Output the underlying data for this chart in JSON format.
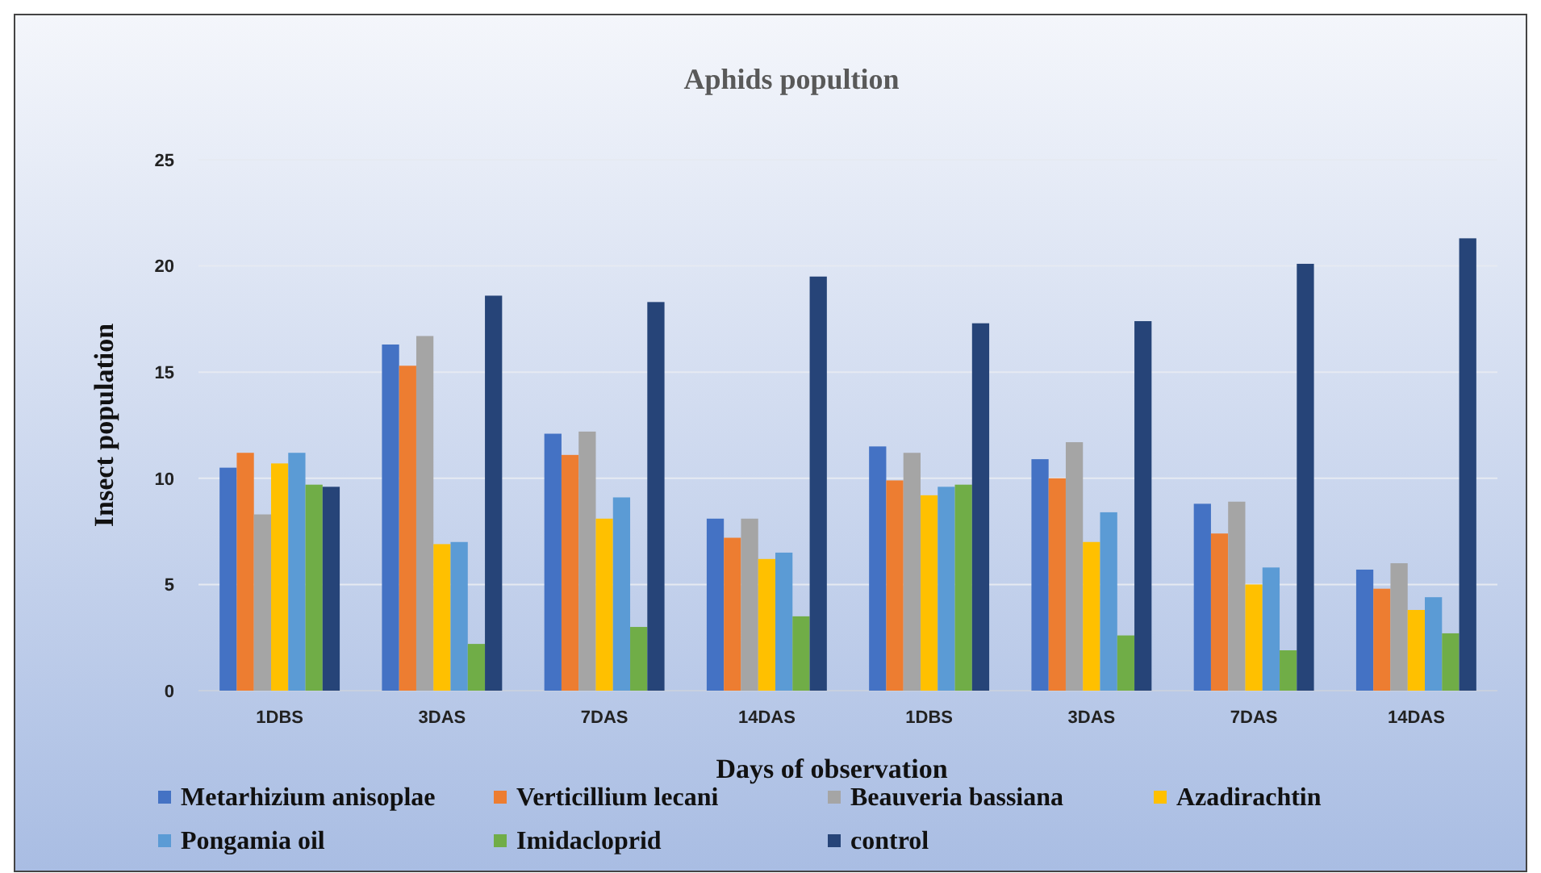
{
  "chart_data": {
    "type": "bar",
    "title": "Aphids popultion",
    "xlabel": "Days of observation",
    "ylabel": "Insect population",
    "categories": [
      "1DBS",
      "3DAS",
      "7DAS",
      "14DAS",
      "1DBS",
      "3DAS",
      "7DAS",
      "14DAS"
    ],
    "series": [
      {
        "name": "Metarhizium anisoplae",
        "color": "#4472c4",
        "values": [
          10.5,
          16.3,
          12.1,
          8.1,
          11.5,
          10.9,
          8.8,
          5.7
        ]
      },
      {
        "name": "Verticillium lecani",
        "color": "#ed7d31",
        "values": [
          11.2,
          15.3,
          11.1,
          7.2,
          9.9,
          10.0,
          7.4,
          4.8
        ]
      },
      {
        "name": "Beauveria bassiana",
        "color": "#a5a5a5",
        "values": [
          8.3,
          16.7,
          12.2,
          8.1,
          11.2,
          11.7,
          8.9,
          6.0
        ]
      },
      {
        "name": "Azadirachtin",
        "color": "#ffc000",
        "values": [
          10.7,
          6.9,
          8.1,
          6.2,
          9.2,
          7.0,
          5.0,
          3.8
        ]
      },
      {
        "name": "Pongamia oil",
        "color": "#5b9bd5",
        "values": [
          11.2,
          7.0,
          9.1,
          6.5,
          9.6,
          8.4,
          5.8,
          4.4
        ]
      },
      {
        "name": "Imidacloprid",
        "color": "#70ad47",
        "values": [
          9.7,
          2.2,
          3.0,
          3.5,
          9.7,
          2.6,
          1.9,
          2.7
        ]
      },
      {
        "name": "control",
        "color": "#264478",
        "values": [
          9.6,
          18.6,
          18.3,
          19.5,
          17.3,
          17.4,
          20.1,
          21.3
        ]
      }
    ],
    "ylim": [
      0,
      25
    ],
    "yticks": [
      0,
      5,
      10,
      15,
      20,
      25
    ],
    "grid": "y",
    "legend": "bottom"
  }
}
